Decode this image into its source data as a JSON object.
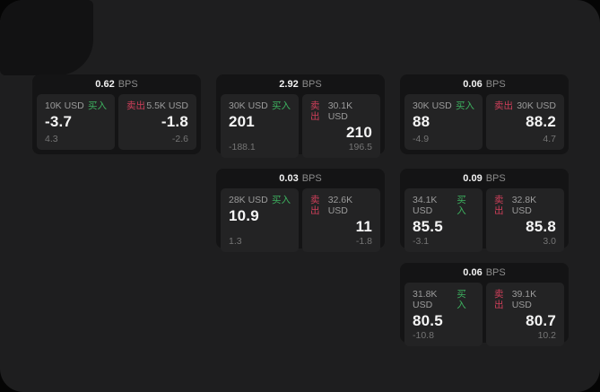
{
  "labels": {
    "buy": "买入",
    "sell": "卖出",
    "bps_unit": "BPS"
  },
  "colors": {
    "page_bg": "#050505",
    "window_bg": "#1e1e1f",
    "card_bg": "#141415",
    "tile_bg": "#232324",
    "buy_green": "#3db15f",
    "sell_red": "#cf3f5a",
    "value_white": "#f5f5f5",
    "label_gray": "#9b9b9b",
    "sub_gray": "#757575"
  },
  "cards": [
    {
      "bps": "0.62",
      "buy": {
        "amount": "10K USD",
        "value": "-3.7",
        "sub": "4.3"
      },
      "sell": {
        "amount": "5.5K USD",
        "value": "-1.8",
        "sub": "-2.6"
      }
    },
    {
      "bps": "2.92",
      "buy": {
        "amount": "30K USD",
        "value": "201",
        "sub": "-188.1"
      },
      "sell": {
        "amount": "30.1K USD",
        "value": "210",
        "sub": "196.5"
      }
    },
    {
      "bps": "0.06",
      "buy": {
        "amount": "30K USD",
        "value": "88",
        "sub": "-4.9"
      },
      "sell": {
        "amount": "30K USD",
        "value": "88.2",
        "sub": "4.7"
      }
    },
    {
      "bps": "0.03",
      "buy": {
        "amount": "28K USD",
        "value": "10.9",
        "sub": "1.3"
      },
      "sell": {
        "amount": "32.6K USD",
        "value": "11",
        "sub": "-1.8"
      }
    },
    {
      "bps": "0.09",
      "buy": {
        "amount": "34.1K USD",
        "value": "85.5",
        "sub": "-3.1"
      },
      "sell": {
        "amount": "32.8K USD",
        "value": "85.8",
        "sub": "3.0"
      }
    },
    {
      "bps": "0.06",
      "buy": {
        "amount": "31.8K USD",
        "value": "80.5",
        "sub": "-10.8"
      },
      "sell": {
        "amount": "39.1K USD",
        "value": "80.7",
        "sub": "10.2"
      }
    }
  ]
}
